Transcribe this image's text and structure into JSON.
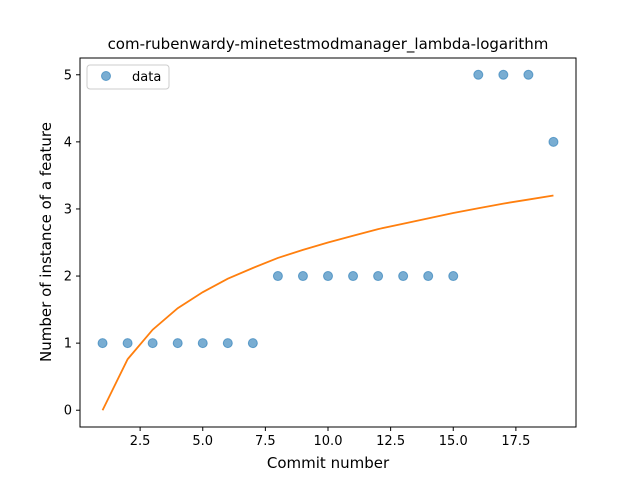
{
  "chart_data": {
    "type": "scatter",
    "title": "com-rubenwardy-minetestmodmanager_lambda-logarithm",
    "xlabel": "Commit number",
    "ylabel": "Number of instance of a feature",
    "xlim": [
      0.1,
      19.9
    ],
    "ylim": [
      -0.25,
      5.25
    ],
    "xticks": [
      2.5,
      5.0,
      7.5,
      10.0,
      12.5,
      15.0,
      17.5
    ],
    "xtick_labels": [
      "2.5",
      "5.0",
      "7.5",
      "10.0",
      "12.5",
      "15.0",
      "17.5"
    ],
    "yticks": [
      0,
      1,
      2,
      3,
      4,
      5
    ],
    "ytick_labels": [
      "0",
      "1",
      "2",
      "3",
      "4",
      "5"
    ],
    "grid": false,
    "legend": {
      "placement": "top-left",
      "entries": [
        "data"
      ]
    },
    "colors": {
      "points": "#1f77b4",
      "fit": "#ff7f0e"
    },
    "series": [
      {
        "name": "data",
        "kind": "scatter",
        "x": [
          1,
          2,
          3,
          4,
          5,
          6,
          7,
          8,
          9,
          10,
          11,
          12,
          13,
          14,
          15,
          16,
          17,
          18,
          19
        ],
        "y": [
          1,
          1,
          1,
          1,
          1,
          1,
          1,
          2,
          2,
          2,
          2,
          2,
          2,
          2,
          2,
          5,
          5,
          5,
          4
        ]
      },
      {
        "kind": "line",
        "x": [
          1,
          2,
          3,
          4,
          5,
          6,
          7,
          8,
          9,
          10,
          11,
          12,
          13,
          14,
          15,
          16,
          17,
          18,
          19
        ],
        "y": [
          0,
          0.76,
          1.2,
          1.52,
          1.76,
          1.96,
          2.12,
          2.27,
          2.39,
          2.5,
          2.6,
          2.7,
          2.78,
          2.86,
          2.94,
          3.01,
          3.08,
          3.14,
          3.2
        ]
      }
    ]
  }
}
